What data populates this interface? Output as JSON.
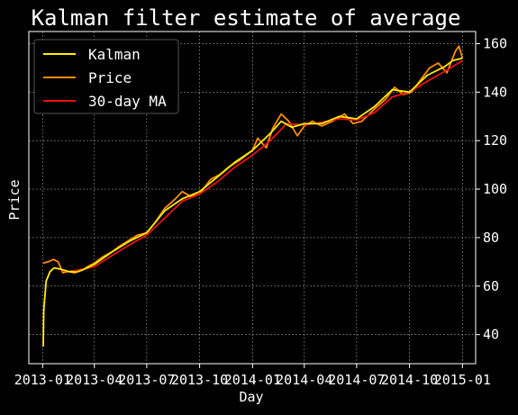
{
  "chart_data": {
    "type": "line",
    "title": "Kalman filter estimate of average",
    "xlabel": "Day",
    "ylabel": "Price",
    "x_range": [
      "2012-12-08",
      "2015-01-24"
    ],
    "ylim": [
      28,
      165
    ],
    "yticks": [
      40,
      60,
      80,
      100,
      120,
      140,
      160
    ],
    "xticks": [
      {
        "date": "2013-01-01",
        "label": "2013-01"
      },
      {
        "date": "2013-04-01",
        "label": "2013-04"
      },
      {
        "date": "2013-07-01",
        "label": "2013-07"
      },
      {
        "date": "2013-10-01",
        "label": "2013-10"
      },
      {
        "date": "2014-01-01",
        "label": "2014-01"
      },
      {
        "date": "2014-04-01",
        "label": "2014-04"
      },
      {
        "date": "2014-07-01",
        "label": "2014-07"
      },
      {
        "date": "2014-10-01",
        "label": "2014-10"
      },
      {
        "date": "2015-01-01",
        "label": "2015-01"
      }
    ],
    "grid": true,
    "legend_position": "top-left",
    "y_axis_side": "right",
    "series": [
      {
        "name": "Kalman",
        "color": "#ffee00",
        "points": [
          [
            "2013-01-02",
            35
          ],
          [
            "2013-01-03",
            50
          ],
          [
            "2013-01-07",
            62
          ],
          [
            "2013-01-14",
            66
          ],
          [
            "2013-01-21",
            67.5
          ],
          [
            "2013-02-01",
            67
          ],
          [
            "2013-02-15",
            66
          ],
          [
            "2013-03-01",
            65.8
          ],
          [
            "2013-03-15",
            67
          ],
          [
            "2013-04-01",
            69
          ],
          [
            "2013-05-01",
            74
          ],
          [
            "2013-06-01",
            78.5
          ],
          [
            "2013-07-01",
            82
          ],
          [
            "2013-08-01",
            91
          ],
          [
            "2013-09-01",
            96
          ],
          [
            "2013-10-01",
            99
          ],
          [
            "2013-11-01",
            105
          ],
          [
            "2013-12-01",
            111
          ],
          [
            "2014-01-01",
            116
          ],
          [
            "2014-02-01",
            123
          ],
          [
            "2014-02-20",
            128
          ],
          [
            "2014-03-10",
            125.5
          ],
          [
            "2014-04-01",
            127
          ],
          [
            "2014-05-01",
            127
          ],
          [
            "2014-06-01",
            130
          ],
          [
            "2014-07-01",
            129
          ],
          [
            "2014-08-01",
            134
          ],
          [
            "2014-09-01",
            141
          ],
          [
            "2014-10-01",
            140
          ],
          [
            "2014-11-01",
            147
          ],
          [
            "2014-12-01",
            150.5
          ],
          [
            "2014-12-15",
            153
          ],
          [
            "2015-01-01",
            154
          ]
        ]
      },
      {
        "name": "Price",
        "color": "#ff8c00",
        "points": [
          [
            "2013-01-02",
            69.5
          ],
          [
            "2013-01-10",
            70
          ],
          [
            "2013-01-20",
            71
          ],
          [
            "2013-01-28",
            70
          ],
          [
            "2013-02-05",
            65.5
          ],
          [
            "2013-02-15",
            66
          ],
          [
            "2013-02-25",
            65.5
          ],
          [
            "2013-03-10",
            66.5
          ],
          [
            "2013-03-20",
            68
          ],
          [
            "2013-04-01",
            69.5
          ],
          [
            "2013-04-15",
            72
          ],
          [
            "2013-05-01",
            74
          ],
          [
            "2013-05-15",
            76.5
          ],
          [
            "2013-06-01",
            79
          ],
          [
            "2013-06-15",
            81
          ],
          [
            "2013-07-01",
            82
          ],
          [
            "2013-07-15",
            86
          ],
          [
            "2013-08-01",
            92
          ],
          [
            "2013-08-20",
            96
          ],
          [
            "2013-09-01",
            99
          ],
          [
            "2013-09-15",
            97
          ],
          [
            "2013-10-01",
            98
          ],
          [
            "2013-10-20",
            104
          ],
          [
            "2013-11-05",
            106
          ],
          [
            "2013-11-20",
            109
          ],
          [
            "2013-12-10",
            112
          ],
          [
            "2014-01-01",
            116
          ],
          [
            "2014-01-10",
            121
          ],
          [
            "2014-01-25",
            117
          ],
          [
            "2014-02-05",
            125
          ],
          [
            "2014-02-20",
            131
          ],
          [
            "2014-03-05",
            128
          ],
          [
            "2014-03-20",
            122
          ],
          [
            "2014-04-01",
            126
          ],
          [
            "2014-04-15",
            128
          ],
          [
            "2014-05-01",
            126
          ],
          [
            "2014-05-20",
            128
          ],
          [
            "2014-06-10",
            131
          ],
          [
            "2014-06-25",
            127
          ],
          [
            "2014-07-10",
            128
          ],
          [
            "2014-08-01",
            133
          ],
          [
            "2014-08-20",
            137
          ],
          [
            "2014-09-05",
            142
          ],
          [
            "2014-09-20",
            139
          ],
          [
            "2014-10-05",
            140
          ],
          [
            "2014-10-20",
            145
          ],
          [
            "2014-11-05",
            150
          ],
          [
            "2014-11-20",
            152
          ],
          [
            "2014-12-05",
            148
          ],
          [
            "2014-12-20",
            157
          ],
          [
            "2014-12-26",
            159
          ],
          [
            "2015-01-01",
            154
          ]
        ]
      },
      {
        "name": "30-day MA",
        "color": "#ee1111",
        "points": [
          [
            "2013-02-01",
            66.5
          ],
          [
            "2013-02-15",
            66
          ],
          [
            "2013-03-01",
            66.5
          ],
          [
            "2013-04-01",
            68
          ],
          [
            "2013-05-01",
            72.5
          ],
          [
            "2013-06-01",
            77
          ],
          [
            "2013-07-01",
            81
          ],
          [
            "2013-08-01",
            88
          ],
          [
            "2013-09-01",
            95
          ],
          [
            "2013-10-01",
            98
          ],
          [
            "2013-11-01",
            103
          ],
          [
            "2013-12-01",
            109
          ],
          [
            "2014-01-01",
            114
          ],
          [
            "2014-02-01",
            120
          ],
          [
            "2014-03-01",
            127
          ],
          [
            "2014-04-01",
            126.5
          ],
          [
            "2014-05-01",
            127.5
          ],
          [
            "2014-06-01",
            129
          ],
          [
            "2014-07-01",
            128.5
          ],
          [
            "2014-08-01",
            131.5
          ],
          [
            "2014-09-01",
            138
          ],
          [
            "2014-10-01",
            140
          ],
          [
            "2014-11-01",
            144.5
          ],
          [
            "2014-12-01",
            148.5
          ],
          [
            "2015-01-01",
            153
          ]
        ]
      }
    ]
  }
}
